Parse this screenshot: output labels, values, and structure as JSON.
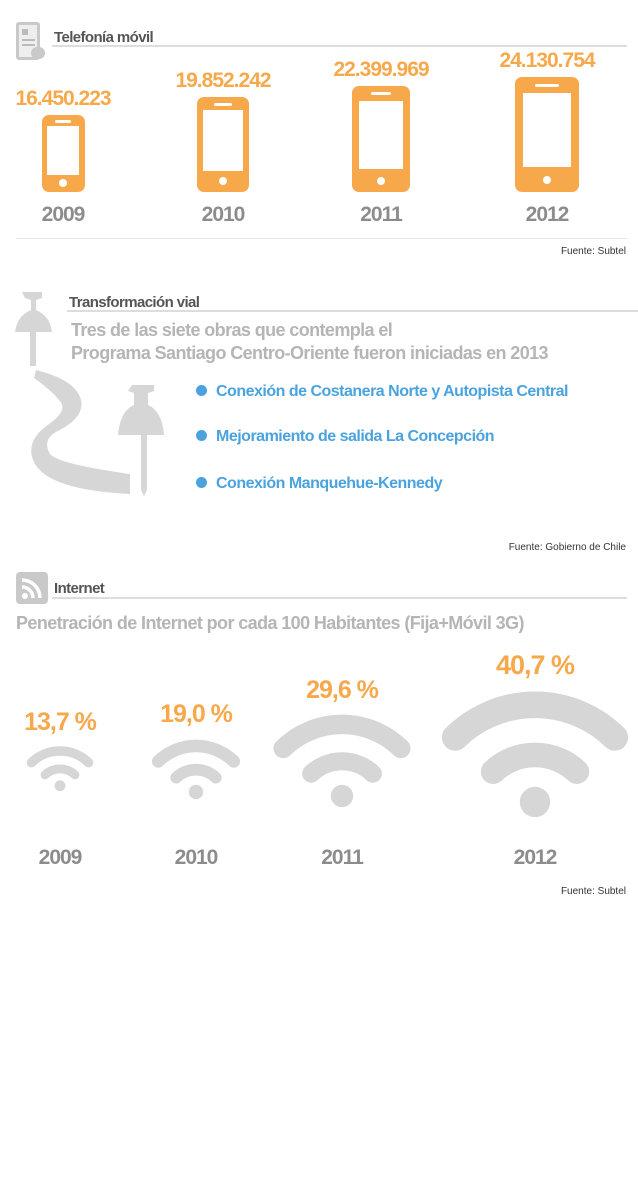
{
  "telefonia": {
    "title": "Telefonía móvil",
    "items": [
      {
        "year": "2009",
        "value": "16.450.223"
      },
      {
        "year": "2010",
        "value": "19.852.242"
      },
      {
        "year": "2011",
        "value": "22.399.969"
      },
      {
        "year": "2012",
        "value": "24.130.754"
      }
    ],
    "source": "Fuente: Subtel"
  },
  "vial": {
    "title": "Transformación vial",
    "subtitle_line1": "Tres de las siete obras que contempla el",
    "subtitle_line2": "Programa Santiago Centro-Oriente fueron iniciadas en 2013",
    "items": [
      "Conexión de Costanera Norte y Autopista Central",
      "Mejoramiento de salida La Concepción",
      "Conexión Manquehue-Kennedy"
    ],
    "source": "Fuente: Gobierno de Chile"
  },
  "internet": {
    "title": "Internet",
    "subtitle": "Penetración de Internet por cada 100 Habitantes (Fija+Móvil 3G)",
    "items": [
      {
        "year": "2009",
        "value": "13,7 %"
      },
      {
        "year": "2010",
        "value": "19,0 %"
      },
      {
        "year": "2011",
        "value": "29,6 %"
      },
      {
        "year": "2012",
        "value": "40,7 %"
      }
    ],
    "source": "Fuente: Subtel"
  },
  "chart_data": [
    {
      "type": "bar",
      "title": "Telefonía móvil",
      "categories": [
        "2009",
        "2010",
        "2011",
        "2012"
      ],
      "values": [
        16450223,
        19852242,
        22399969,
        24130754
      ]
    },
    {
      "type": "bar",
      "title": "Penetración de Internet por cada 100 Habitantes (Fija+Móvil 3G)",
      "categories": [
        "2009",
        "2010",
        "2011",
        "2012"
      ],
      "values": [
        13.7,
        19.0,
        29.6,
        40.7
      ],
      "ylabel": "%"
    }
  ],
  "colors": {
    "accent": "#f7a84a",
    "blue": "#4aa3df",
    "gray": "#d6d6d6"
  }
}
